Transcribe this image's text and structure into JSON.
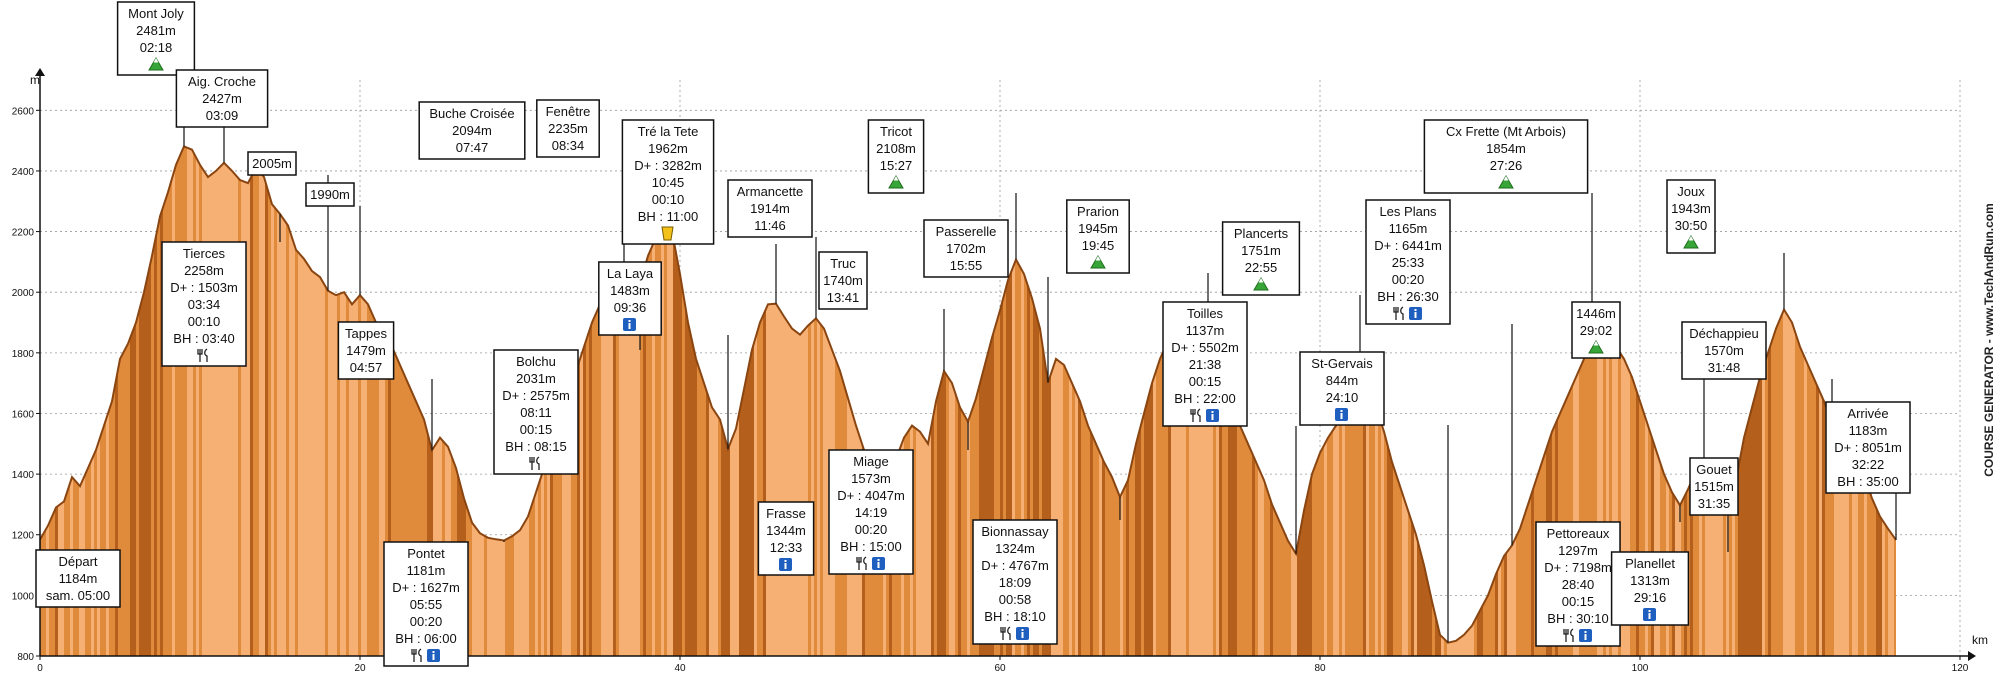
{
  "chart_data": {
    "type": "area",
    "title": "",
    "xlabel": "km",
    "ylabel": "m",
    "xlim": [
      0,
      120
    ],
    "ylim": [
      800,
      2700
    ],
    "x_ticks": [
      0,
      20,
      40,
      60,
      80,
      100,
      120
    ],
    "y_ticks": [
      800,
      1000,
      1200,
      1400,
      1600,
      1800,
      2000,
      2200,
      2400,
      2600
    ],
    "grid": true,
    "watermark": "COURSE GENERATOR - www.TechAndRun.com",
    "colors": {
      "fill_light": "#f7b074",
      "fill_mid": "#e08a3c",
      "fill_dark": "#b45f1c",
      "outline": "#8a4510",
      "grid": "#9a9a9a",
      "mountain_icon": "#37a537",
      "info_icon": "#1f5fbf"
    },
    "profile": [
      [
        0,
        1184
      ],
      [
        0.5,
        1230
      ],
      [
        1,
        1290
      ],
      [
        1.5,
        1310
      ],
      [
        2,
        1390
      ],
      [
        2.5,
        1360
      ],
      [
        3,
        1420
      ],
      [
        3.5,
        1480
      ],
      [
        4,
        1560
      ],
      [
        4.5,
        1640
      ],
      [
        5,
        1780
      ],
      [
        5.5,
        1830
      ],
      [
        6,
        1900
      ],
      [
        6.5,
        2000
      ],
      [
        7,
        2120
      ],
      [
        7.5,
        2250
      ],
      [
        8,
        2330
      ],
      [
        8.5,
        2420
      ],
      [
        9,
        2481
      ],
      [
        9.5,
        2470
      ],
      [
        10,
        2420
      ],
      [
        10.5,
        2380
      ],
      [
        11,
        2400
      ],
      [
        11.5,
        2427
      ],
      [
        12,
        2400
      ],
      [
        12.5,
        2370
      ],
      [
        13,
        2360
      ],
      [
        13.5,
        2410
      ],
      [
        14,
        2380
      ],
      [
        14.5,
        2290
      ],
      [
        15,
        2258
      ],
      [
        15.5,
        2220
      ],
      [
        16,
        2140
      ],
      [
        16.5,
        2110
      ],
      [
        17,
        2070
      ],
      [
        17.5,
        2050
      ],
      [
        18,
        2005
      ],
      [
        18.5,
        1990
      ],
      [
        19,
        2000
      ],
      [
        19.5,
        1960
      ],
      [
        20,
        1990
      ],
      [
        20.5,
        1960
      ],
      [
        21,
        1900
      ],
      [
        21.5,
        1870
      ],
      [
        22,
        1820
      ],
      [
        22.5,
        1760
      ],
      [
        23,
        1700
      ],
      [
        23.5,
        1640
      ],
      [
        24,
        1580
      ],
      [
        24.5,
        1479
      ],
      [
        25,
        1520
      ],
      [
        25.5,
        1490
      ],
      [
        26,
        1420
      ],
      [
        26.5,
        1320
      ],
      [
        27,
        1240
      ],
      [
        27.5,
        1205
      ],
      [
        28,
        1190
      ],
      [
        28.5,
        1185
      ],
      [
        29,
        1181
      ],
      [
        29.5,
        1195
      ],
      [
        30,
        1215
      ],
      [
        30.5,
        1260
      ],
      [
        31,
        1340
      ],
      [
        31.5,
        1420
      ],
      [
        32,
        1500
      ],
      [
        32.5,
        1580
      ],
      [
        33,
        1660
      ],
      [
        33.5,
        1740
      ],
      [
        34,
        1820
      ],
      [
        34.5,
        1900
      ],
      [
        35,
        1960
      ],
      [
        35.5,
        2000
      ],
      [
        36,
        2060
      ],
      [
        36.5,
        2094
      ],
      [
        37,
        2060
      ],
      [
        37.5,
        2031
      ],
      [
        38,
        2120
      ],
      [
        38.5,
        2180
      ],
      [
        39,
        2235
      ],
      [
        39.5,
        2200
      ],
      [
        40,
        2060
      ],
      [
        40.5,
        1900
      ],
      [
        41,
        1780
      ],
      [
        41.5,
        1700
      ],
      [
        42,
        1620
      ],
      [
        42.5,
        1580
      ],
      [
        43,
        1483
      ],
      [
        43.5,
        1550
      ],
      [
        44,
        1680
      ],
      [
        44.5,
        1810
      ],
      [
        45,
        1900
      ],
      [
        45.5,
        1960
      ],
      [
        46,
        1962
      ],
      [
        46.5,
        1920
      ],
      [
        47,
        1880
      ],
      [
        47.5,
        1860
      ],
      [
        48,
        1890
      ],
      [
        48.5,
        1914
      ],
      [
        49,
        1880
      ],
      [
        49.5,
        1810
      ],
      [
        50,
        1740
      ],
      [
        50.5,
        1650
      ],
      [
        51,
        1560
      ],
      [
        51.5,
        1480
      ],
      [
        52,
        1410
      ],
      [
        52.5,
        1344
      ],
      [
        53,
        1370
      ],
      [
        53.5,
        1450
      ],
      [
        54,
        1520
      ],
      [
        54.5,
        1560
      ],
      [
        55,
        1540
      ],
      [
        55.5,
        1500
      ],
      [
        56,
        1640
      ],
      [
        56.5,
        1740
      ],
      [
        57,
        1700
      ],
      [
        57.5,
        1620
      ],
      [
        58,
        1573
      ],
      [
        58.5,
        1650
      ],
      [
        59,
        1750
      ],
      [
        59.5,
        1850
      ],
      [
        60,
        1940
      ],
      [
        60.5,
        2040
      ],
      [
        61,
        2108
      ],
      [
        61.5,
        2060
      ],
      [
        62,
        1980
      ],
      [
        62.5,
        1880
      ],
      [
        63,
        1702
      ],
      [
        63.5,
        1780
      ],
      [
        64,
        1760
      ],
      [
        64.5,
        1700
      ],
      [
        65,
        1640
      ],
      [
        65.5,
        1560
      ],
      [
        66,
        1500
      ],
      [
        66.5,
        1440
      ],
      [
        67,
        1390
      ],
      [
        67.5,
        1324
      ],
      [
        68,
        1380
      ],
      [
        68.5,
        1500
      ],
      [
        69,
        1600
      ],
      [
        69.5,
        1700
      ],
      [
        70,
        1780
      ],
      [
        70.5,
        1840
      ],
      [
        71,
        1870
      ],
      [
        71.5,
        1880
      ],
      [
        72,
        1860
      ],
      [
        72.5,
        1890
      ],
      [
        73,
        1945
      ],
      [
        73.5,
        1860
      ],
      [
        74,
        1760
      ],
      [
        74.5,
        1650
      ],
      [
        75,
        1560
      ],
      [
        75.5,
        1500
      ],
      [
        76,
        1440
      ],
      [
        76.5,
        1380
      ],
      [
        77,
        1300
      ],
      [
        77.5,
        1240
      ],
      [
        78,
        1180
      ],
      [
        78.5,
        1137
      ],
      [
        79,
        1280
      ],
      [
        79.5,
        1400
      ],
      [
        80,
        1470
      ],
      [
        80.5,
        1520
      ],
      [
        81,
        1560
      ],
      [
        81.5,
        1620
      ],
      [
        82,
        1680
      ],
      [
        82.5,
        1751
      ],
      [
        83,
        1700
      ],
      [
        83.5,
        1620
      ],
      [
        84,
        1540
      ],
      [
        84.5,
        1440
      ],
      [
        85,
        1360
      ],
      [
        85.5,
        1280
      ],
      [
        86,
        1200
      ],
      [
        86.5,
        1100
      ],
      [
        87,
        980
      ],
      [
        87.5,
        870
      ],
      [
        88,
        844
      ],
      [
        88.5,
        850
      ],
      [
        89,
        870
      ],
      [
        89.5,
        900
      ],
      [
        90,
        950
      ],
      [
        90.5,
        1000
      ],
      [
        91,
        1070
      ],
      [
        91.5,
        1130
      ],
      [
        92,
        1165
      ],
      [
        92.5,
        1220
      ],
      [
        93,
        1300
      ],
      [
        93.5,
        1380
      ],
      [
        94,
        1460
      ],
      [
        94.5,
        1540
      ],
      [
        95,
        1600
      ],
      [
        95.5,
        1660
      ],
      [
        96,
        1720
      ],
      [
        96.5,
        1780
      ],
      [
        97,
        1854
      ],
      [
        97.5,
        1820
      ],
      [
        98,
        1800
      ],
      [
        98.5,
        1820
      ],
      [
        99,
        1780
      ],
      [
        99.5,
        1720
      ],
      [
        100,
        1640
      ],
      [
        100.5,
        1560
      ],
      [
        101,
        1480
      ],
      [
        101.5,
        1400
      ],
      [
        102,
        1340
      ],
      [
        102.5,
        1297
      ],
      [
        103,
        1350
      ],
      [
        103.5,
        1410
      ],
      [
        104,
        1446
      ],
      [
        104.5,
        1420
      ],
      [
        105,
        1380
      ],
      [
        105.5,
        1313
      ],
      [
        106,
        1380
      ],
      [
        106.5,
        1520
      ],
      [
        107,
        1620
      ],
      [
        107.5,
        1720
      ],
      [
        108,
        1800
      ],
      [
        108.5,
        1880
      ],
      [
        109,
        1943
      ],
      [
        109.5,
        1900
      ],
      [
        110,
        1820
      ],
      [
        110.5,
        1760
      ],
      [
        111,
        1700
      ],
      [
        111.5,
        1640
      ],
      [
        112,
        1570
      ],
      [
        112.5,
        1560
      ],
      [
        113,
        1515
      ],
      [
        113.5,
        1470
      ],
      [
        114,
        1400
      ],
      [
        114.5,
        1320
      ],
      [
        115,
        1260
      ],
      [
        115.5,
        1220
      ],
      [
        116,
        1183
      ]
    ],
    "annotations": [
      {
        "x": 0,
        "y": 1184,
        "lines": [
          "Départ",
          "1184m",
          "sam. 05:00"
        ],
        "icons": []
      },
      {
        "x": 9,
        "y": 2481,
        "lines": [
          "Mont Joly",
          "2481m",
          "02:18"
        ],
        "icons": [
          "mountain"
        ]
      },
      {
        "x": 11.5,
        "y": 2427,
        "lines": [
          "Aig. Croche",
          "2427m",
          "03:09"
        ],
        "icons": []
      },
      {
        "x": 18,
        "y": 2005,
        "lines": [
          "2005m"
        ],
        "icons": []
      },
      {
        "x": 20,
        "y": 1990,
        "lines": [
          "1990m"
        ],
        "icons": []
      },
      {
        "x": 15,
        "y": 2258,
        "lines": [
          "Tierces",
          "2258m",
          "D+ : 1503m",
          "03:34",
          "00:10",
          "BH : 03:40"
        ],
        "icons": [
          "food"
        ]
      },
      {
        "x": 24.5,
        "y": 1479,
        "lines": [
          "Tappes",
          "1479m",
          "04:57"
        ],
        "icons": []
      },
      {
        "x": 29,
        "y": 1181,
        "lines": [
          "Pontet",
          "1181m",
          "D+ : 1627m",
          "05:55",
          "00:20",
          "BH : 06:00"
        ],
        "icons": [
          "food",
          "info"
        ]
      },
      {
        "x": 36.5,
        "y": 2094,
        "lines": [
          "Buche Croisée",
          "2094m",
          "07:47"
        ],
        "icons": []
      },
      {
        "x": 37.5,
        "y": 2031,
        "lines": [
          "Bolchu",
          "2031m",
          "D+ : 2575m",
          "08:11",
          "00:15",
          "BH : 08:15"
        ],
        "icons": [
          "food"
        ]
      },
      {
        "x": 39,
        "y": 2235,
        "lines": [
          "Fenêtre",
          "2235m",
          "08:34"
        ],
        "icons": []
      },
      {
        "x": 43,
        "y": 1483,
        "lines": [
          "La Laya",
          "1483m",
          "09:36"
        ],
        "icons": [
          "info"
        ]
      },
      {
        "x": 46,
        "y": 1962,
        "lines": [
          "Tré la Tete",
          "1962m",
          "D+ : 3282m",
          "10:45",
          "00:10",
          "BH : 11:00"
        ],
        "icons": [
          "drink"
        ]
      },
      {
        "x": 48.5,
        "y": 1914,
        "lines": [
          "Armancette",
          "1914m",
          "11:46"
        ],
        "icons": []
      },
      {
        "x": 52.5,
        "y": 1344,
        "lines": [
          "Frasse",
          "1344m",
          "12:33"
        ],
        "icons": [
          "info"
        ]
      },
      {
        "x": 56.5,
        "y": 1740,
        "lines": [
          "Truc",
          "1740m",
          "13:41"
        ],
        "icons": []
      },
      {
        "x": 58,
        "y": 1573,
        "lines": [
          "Miage",
          "1573m",
          "D+ : 4047m",
          "14:19",
          "00:20",
          "BH : 15:00"
        ],
        "icons": [
          "food",
          "info"
        ]
      },
      {
        "x": 61,
        "y": 2108,
        "lines": [
          "Tricot",
          "2108m",
          "15:27"
        ],
        "icons": [
          "mountain"
        ]
      },
      {
        "x": 63,
        "y": 1702,
        "lines": [
          "Passerelle",
          "1702m",
          "15:55"
        ],
        "icons": []
      },
      {
        "x": 67.5,
        "y": 1324,
        "lines": [
          "Bionnassay",
          "1324m",
          "D+ : 4767m",
          "18:09",
          "00:58",
          "BH : 18:10"
        ],
        "icons": [
          "food",
          "info"
        ]
      },
      {
        "x": 73,
        "y": 1945,
        "lines": [
          "Prarion",
          "1945m",
          "19:45"
        ],
        "icons": [
          "mountain"
        ]
      },
      {
        "x": 78.5,
        "y": 1137,
        "lines": [
          "Toilles",
          "1137m",
          "D+ : 5502m",
          "21:38",
          "00:15",
          "BH : 22:00"
        ],
        "icons": [
          "food",
          "info"
        ]
      },
      {
        "x": 82.5,
        "y": 1751,
        "lines": [
          "Plancerts",
          "1751m",
          "22:55"
        ],
        "icons": [
          "mountain"
        ]
      },
      {
        "x": 88,
        "y": 844,
        "lines": [
          "St-Gervais",
          "844m",
          "24:10"
        ],
        "icons": [
          "info"
        ]
      },
      {
        "x": 92,
        "y": 1165,
        "lines": [
          "Les Plans",
          "1165m",
          "D+ : 6441m",
          "25:33",
          "00:20",
          "BH : 26:30"
        ],
        "icons": [
          "food",
          "info"
        ]
      },
      {
        "x": 97,
        "y": 1854,
        "lines": [
          "Cx Frette (Mt Arbois)",
          "1854m",
          "27:26"
        ],
        "icons": [
          "mountain"
        ]
      },
      {
        "x": 102.5,
        "y": 1297,
        "lines": [
          "Pettoreaux",
          "1297m",
          "D+ : 7198m",
          "28:40",
          "00:15",
          "BH : 30:10"
        ],
        "icons": [
          "food",
          "info"
        ]
      },
      {
        "x": 104,
        "y": 1446,
        "lines": [
          "1446m",
          "29:02"
        ],
        "icons": [
          "mountain"
        ]
      },
      {
        "x": 105.5,
        "y": 1313,
        "lines": [
          "Planellet",
          "1313m",
          "29:16"
        ],
        "icons": [
          "info"
        ]
      },
      {
        "x": 109,
        "y": 1943,
        "lines": [
          "Joux",
          "1943m",
          "30:50"
        ],
        "icons": [
          "mountain"
        ]
      },
      {
        "x": 112,
        "y": 1570,
        "lines": [
          "Déchappieu",
          "1570m",
          "31:48"
        ],
        "icons": []
      },
      {
        "x": 113,
        "y": 1515,
        "lines": [
          "Gouet",
          "1515m",
          "31:35"
        ],
        "icons": []
      },
      {
        "x": 116,
        "y": 1183,
        "lines": [
          "Arrivée",
          "1183m",
          "D+ : 8051m",
          "32:22",
          "BH : 35:00"
        ],
        "icons": []
      }
    ]
  }
}
